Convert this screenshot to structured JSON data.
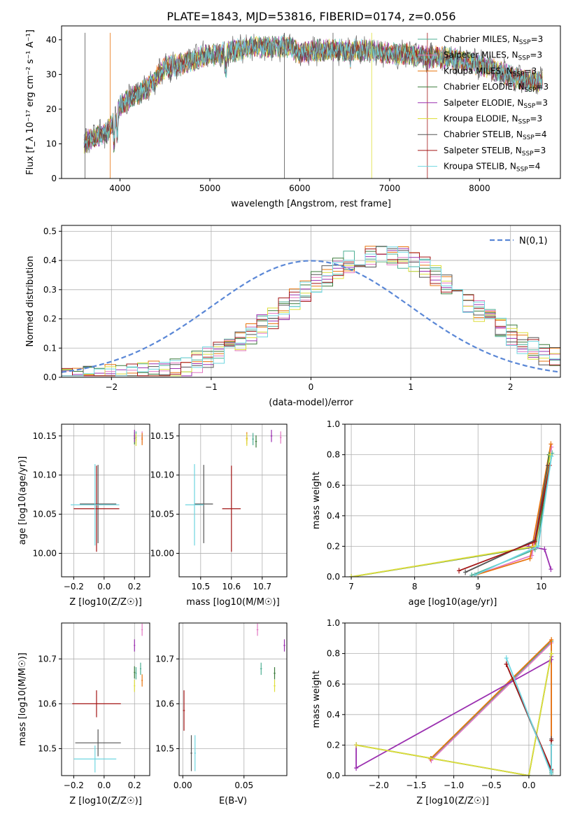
{
  "figure_title": "PLATE=1843, MJD=53816, FIBERID=0174, z=0.056",
  "series_colors": [
    "#4daf93",
    "#e377c2",
    "#e8750f",
    "#3a7a3a",
    "#9b30b0",
    "#dede3a",
    "#555555",
    "#a31515",
    "#6fd6e0"
  ],
  "chart_data": [
    {
      "id": "spectrum",
      "type": "line",
      "xlabel": "wavelength [Angstrom, rest frame]",
      "ylabel": "Flux [f_λ 10⁻¹⁷ erg cm⁻² s⁻¹ A⁻¹]",
      "xlim": [
        3350,
        8900
      ],
      "ylim": [
        0,
        44
      ],
      "xticks": [
        "4000",
        "5000",
        "6000",
        "7000",
        "8000"
      ],
      "yticks": [
        "0",
        "10",
        "20",
        "30",
        "40"
      ],
      "grid": false,
      "legend_position": "top-right",
      "series_names": [
        "Chabrier MILES, N_SSP=3",
        "Salpeter MILES, N_SSP=3",
        "Kroupa MILES, N_SSP=3",
        "Chabrier ELODIE, N_SSP=3",
        "Salpeter ELODIE, N_SSP=3",
        "Kroupa ELODIE, N_SSP=3",
        "Chabrier STELIB, N_SSP=4",
        "Salpeter STELIB, N_SSP=3",
        "Kroupa STELIB, N_SSP=4"
      ],
      "continuum_points": [
        [
          3600,
          10
        ],
        [
          3700,
          12
        ],
        [
          3850,
          13
        ],
        [
          3950,
          17
        ],
        [
          4000,
          21
        ],
        [
          4100,
          23
        ],
        [
          4300,
          26
        ],
        [
          4500,
          32
        ],
        [
          4700,
          33
        ],
        [
          4900,
          35
        ],
        [
          5100,
          36
        ],
        [
          5300,
          37
        ],
        [
          5500,
          38
        ],
        [
          5700,
          38
        ],
        [
          5900,
          38
        ],
        [
          6000,
          36
        ],
        [
          6200,
          37
        ],
        [
          6400,
          37
        ],
        [
          6600,
          37
        ],
        [
          6800,
          37
        ],
        [
          7000,
          36
        ],
        [
          7200,
          36
        ],
        [
          7400,
          35
        ],
        [
          7600,
          35
        ],
        [
          7800,
          34
        ],
        [
          8000,
          33
        ],
        [
          8200,
          31
        ],
        [
          8400,
          29
        ],
        [
          8600,
          28
        ],
        [
          8700,
          28
        ]
      ]
    },
    {
      "id": "residuals",
      "type": "line",
      "xlabel": "(data-model)/error",
      "ylabel": "Normed distribution",
      "xlim": [
        -2.5,
        2.5
      ],
      "ylim": [
        0,
        0.52
      ],
      "xticks": [
        "−2",
        "−1",
        "0",
        "1",
        "2"
      ],
      "yticks": [
        "0.0",
        "0.1",
        "0.2",
        "0.3",
        "0.4",
        "0.5"
      ],
      "grid": true,
      "legend_position": "top-right",
      "legend_label": "N(0,1)",
      "gaussian": {
        "mean": 0,
        "sigma": 1
      }
    },
    {
      "id": "z-age",
      "type": "scatter",
      "xlabel": "Z [log10(Z/Z☉)]",
      "ylabel": "age  [log10(age/yr)]",
      "xlim": [
        -0.28,
        0.3
      ],
      "ylim": [
        9.97,
        10.165
      ],
      "xticks": [
        "−0.2",
        "0.0",
        "0.2"
      ],
      "yticks": [
        "10.00",
        "10.05",
        "10.10",
        "10.15"
      ],
      "grid": true,
      "points": [
        {
          "x": 0.21,
          "y": 10.148,
          "c": 0
        },
        {
          "x": 0.25,
          "y": 10.148,
          "c": 1
        },
        {
          "x": 0.25,
          "y": 10.146,
          "c": 2
        },
        {
          "x": 0.2,
          "y": 10.147,
          "c": 3
        },
        {
          "x": 0.2,
          "y": 10.15,
          "c": 4
        },
        {
          "x": 0.21,
          "y": 10.145,
          "c": 5
        },
        {
          "x": -0.04,
          "y": 10.063,
          "c": 6,
          "xerr": 0.12,
          "yerr": 0.05
        },
        {
          "x": -0.05,
          "y": 10.057,
          "c": 7,
          "xerr": 0.15,
          "yerr": 0.055
        },
        {
          "x": -0.06,
          "y": 10.062,
          "c": 8,
          "xerr": 0.16,
          "yerr": 0.052
        }
      ]
    },
    {
      "id": "mass-age",
      "type": "scatter",
      "xlabel": "mass [log10(M/M☉)]",
      "ylabel": "",
      "xlim": [
        10.43,
        10.78
      ],
      "ylim": [
        9.97,
        10.165
      ],
      "xticks": [
        "10.5",
        "10.6",
        "10.7"
      ],
      "yticks": [
        "10.00",
        "10.05",
        "10.10",
        "10.15"
      ],
      "grid": true,
      "points": [
        {
          "x": 10.67,
          "y": 10.146,
          "c": 0
        },
        {
          "x": 10.76,
          "y": 10.148,
          "c": 1
        },
        {
          "x": 10.65,
          "y": 10.147,
          "c": 2
        },
        {
          "x": 10.68,
          "y": 10.143,
          "c": 3
        },
        {
          "x": 10.73,
          "y": 10.15,
          "c": 4
        },
        {
          "x": 10.65,
          "y": 10.145,
          "c": 5
        },
        {
          "x": 10.51,
          "y": 10.063,
          "c": 6,
          "xerr": 0.03,
          "yerr": 0.05
        },
        {
          "x": 10.6,
          "y": 10.057,
          "c": 7,
          "xerr": 0.03,
          "yerr": 0.055
        },
        {
          "x": 10.48,
          "y": 10.062,
          "c": 8,
          "xerr": 0.03,
          "yerr": 0.052
        }
      ]
    },
    {
      "id": "age-weight",
      "type": "line",
      "xlabel": "age  [log10(age/yr)]",
      "ylabel": "mass weight",
      "xlim": [
        6.9,
        10.3
      ],
      "ylim": [
        0,
        1
      ],
      "xticks": [
        "7",
        "8",
        "9",
        "10"
      ],
      "yticks": [
        "0.0",
        "0.2",
        "0.4",
        "0.6",
        "0.8",
        "1.0"
      ],
      "grid": true,
      "series": [
        {
          "c": 0,
          "x": [
            8.9,
            9.9,
            10.17
          ],
          "y": [
            0.01,
            0.18,
            0.81
          ]
        },
        {
          "c": 1,
          "x": [
            8.95,
            9.85,
            10.16
          ],
          "y": [
            0.01,
            0.14,
            0.85
          ]
        },
        {
          "c": 2,
          "x": [
            8.95,
            9.82,
            10.15
          ],
          "y": [
            0.01,
            0.12,
            0.87
          ]
        },
        {
          "c": 3,
          "x": [
            7.0,
            9.95,
            10.12
          ],
          "y": [
            0.0,
            0.2,
            0.8
          ]
        },
        {
          "c": 4,
          "x": [
            9.8,
            10.05,
            10.15
          ],
          "y": [
            0.2,
            0.18,
            0.05
          ]
        },
        {
          "c": 5,
          "x": [
            7.0,
            9.9,
            10.14
          ],
          "y": [
            0.0,
            0.2,
            0.8
          ]
        },
        {
          "c": 6,
          "x": [
            8.8,
            9.9,
            10.1
          ],
          "y": [
            0.03,
            0.24,
            0.73
          ]
        },
        {
          "c": 7,
          "x": [
            8.7,
            9.9,
            10.13
          ],
          "y": [
            0.04,
            0.23,
            0.73
          ]
        },
        {
          "c": 8,
          "x": [
            8.95,
            9.95,
            10.16
          ],
          "y": [
            0.01,
            0.2,
            0.79
          ]
        }
      ]
    },
    {
      "id": "z-mass",
      "type": "scatter",
      "xlabel": "Z [log10(Z/Z☉)]",
      "ylabel": "mass [log10(M/M☉)]",
      "xlim": [
        -0.28,
        0.3
      ],
      "ylim": [
        10.44,
        10.78
      ],
      "xticks": [
        "−0.2",
        "0.0",
        "0.2"
      ],
      "yticks": [
        "10.5",
        "10.6",
        "10.7"
      ],
      "grid": true,
      "points": [
        {
          "x": 0.21,
          "y": 10.668,
          "c": 0
        },
        {
          "x": 0.25,
          "y": 10.765,
          "c": 1
        },
        {
          "x": 0.25,
          "y": 10.652,
          "c": 2
        },
        {
          "x": 0.2,
          "y": 10.67,
          "c": 3
        },
        {
          "x": 0.2,
          "y": 10.73,
          "c": 4
        },
        {
          "x": 0.2,
          "y": 10.64,
          "c": 5
        },
        {
          "x": 0.24,
          "y": 10.678,
          "c": 0
        },
        {
          "x": -0.04,
          "y": 10.513,
          "c": 6,
          "xerr": 0.15,
          "yerr": 0.03
        },
        {
          "x": -0.05,
          "y": 10.6,
          "c": 7,
          "xerr": 0.16,
          "yerr": 0.03
        },
        {
          "x": -0.06,
          "y": 10.477,
          "c": 8,
          "xerr": 0.14,
          "yerr": 0.03
        }
      ]
    },
    {
      "id": "ebv-mass",
      "type": "scatter",
      "xlabel": "E(B-V)",
      "ylabel": "",
      "xlim": [
        -0.003,
        0.085
      ],
      "ylim": [
        10.44,
        10.78
      ],
      "xticks": [
        "0.00",
        "0.05"
      ],
      "yticks": [
        "10.5",
        "10.6",
        "10.7"
      ],
      "grid": true,
      "points": [
        {
          "x": 0.061,
          "y": 10.765,
          "c": 1
        },
        {
          "x": 0.083,
          "y": 10.73,
          "c": 4
        },
        {
          "x": 0.064,
          "y": 10.678,
          "c": 0
        },
        {
          "x": 0.075,
          "y": 10.668,
          "c": 3
        },
        {
          "x": 0.075,
          "y": 10.64,
          "c": 5
        },
        {
          "x": 0.001,
          "y": 10.585,
          "c": 7,
          "yerr": 0.045
        },
        {
          "x": 0.007,
          "y": 10.49,
          "c": 6,
          "yerr": 0.04
        },
        {
          "x": 0.01,
          "y": 10.49,
          "c": 8,
          "yerr": 0.04
        }
      ]
    },
    {
      "id": "z-weight",
      "type": "line",
      "xlabel": "Z [log10(Z/Z☉)]",
      "ylabel": "mass weight",
      "xlim": [
        -2.45,
        0.42
      ],
      "ylim": [
        0,
        1
      ],
      "xticks": [
        "−2.0",
        "−1.5",
        "−1.0",
        "−0.5",
        "0.0"
      ],
      "yticks": [
        "0.0",
        "0.2",
        "0.4",
        "0.6",
        "0.8",
        "1.0"
      ],
      "grid": true,
      "series": [
        {
          "c": 0,
          "x": [
            -1.3,
            0.3,
            0.3
          ],
          "y": [
            0.11,
            0.88,
            0.02
          ]
        },
        {
          "c": 1,
          "x": [
            -1.3,
            0.3,
            0.3
          ],
          "y": [
            0.1,
            0.87,
            0.03
          ]
        },
        {
          "c": 2,
          "x": [
            -1.31,
            0.3,
            0.3
          ],
          "y": [
            0.11,
            0.89,
            0.01
          ]
        },
        {
          "c": 3,
          "x": [
            -2.3,
            0.0,
            0.3
          ],
          "y": [
            0.2,
            0.0,
            0.8
          ]
        },
        {
          "c": 4,
          "x": [
            -2.3,
            -2.3,
            0.3,
            0.3
          ],
          "y": [
            0.2,
            0.05,
            0.76,
            0.78
          ]
        },
        {
          "c": 5,
          "x": [
            -2.3,
            0.0,
            0.3
          ],
          "y": [
            0.2,
            0.0,
            0.8
          ]
        },
        {
          "c": 6,
          "x": [
            -0.3,
            0.3,
            0.3
          ],
          "y": [
            0.73,
            0.03,
            0.24
          ]
        },
        {
          "c": 7,
          "x": [
            -0.3,
            0.3,
            0.3
          ],
          "y": [
            0.73,
            0.04,
            0.23
          ]
        },
        {
          "c": 8,
          "x": [
            -0.3,
            0.3,
            0.3
          ],
          "y": [
            0.77,
            0.01,
            0.2
          ]
        }
      ]
    }
  ]
}
